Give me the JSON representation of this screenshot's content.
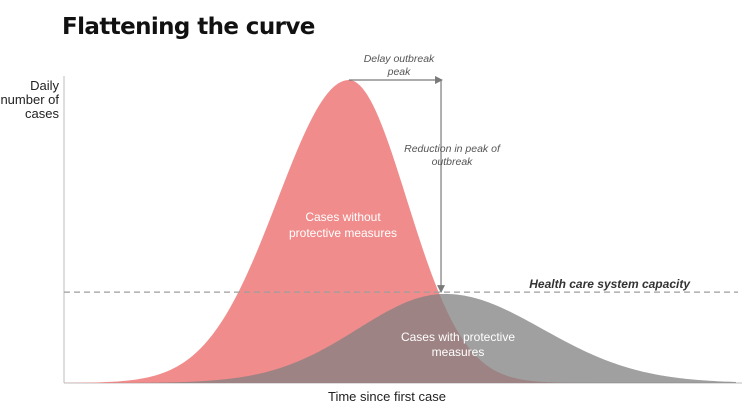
{
  "chart_data": {
    "type": "area",
    "title": "Flattening the curve",
    "xlabel": "Time since first case",
    "ylabel": [
      "Daily",
      "number of",
      "cases"
    ],
    "xlim": [
      0,
      100
    ],
    "ylim": [
      0,
      100
    ],
    "grid": false,
    "capacity": {
      "label": "Health care system capacity",
      "value": 30
    },
    "series": [
      {
        "name": [
          "Cases without",
          "protective measures"
        ],
        "color": "#ef7f7f",
        "opacity": 0.9,
        "peak_x": 42.4,
        "peak_y": 100,
        "spread_left": 10.6,
        "spread_right": 8.6
      },
      {
        "name": [
          "Cases with protective",
          "measures"
        ],
        "color": "#808080",
        "opacity": 0.75,
        "peak_x": 56.7,
        "peak_y": 29.4,
        "spread_left": 13.0,
        "spread_right": 14.5
      }
    ],
    "annotations": [
      {
        "text": [
          "Delay outbreak",
          "peak"
        ]
      },
      {
        "text": [
          "Reduction in peak of",
          "outbreak"
        ]
      }
    ]
  }
}
